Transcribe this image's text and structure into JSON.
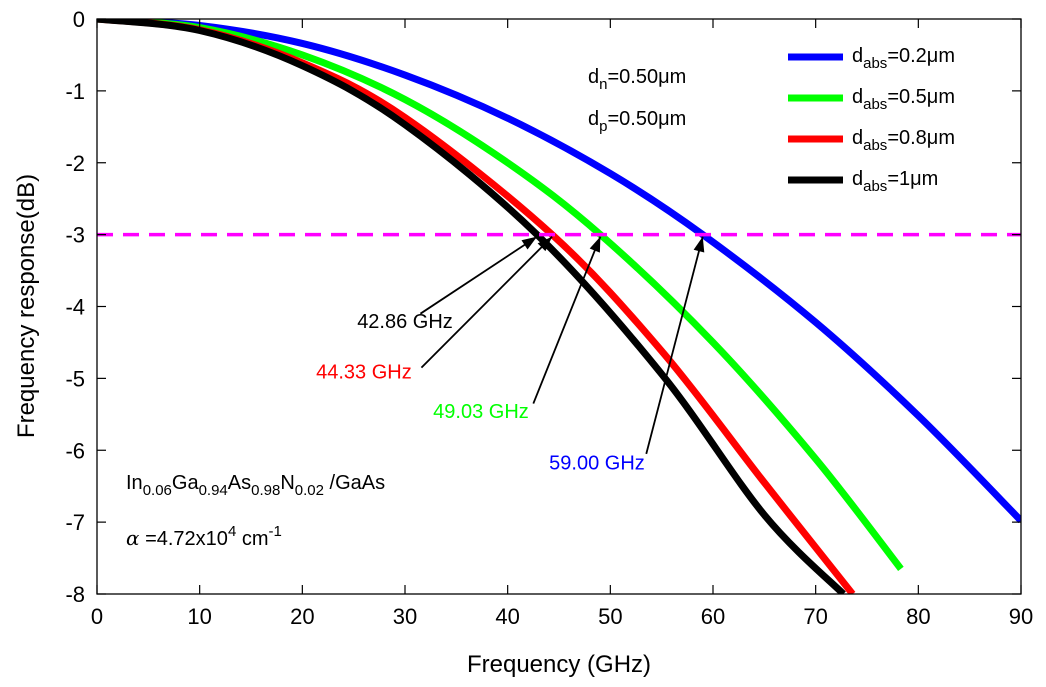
{
  "chart_data": {
    "type": "line",
    "xlabel": "Frequency (GHz)",
    "ylabel": "Frequency response(dB)",
    "xlim": [
      0,
      90
    ],
    "ylim": [
      -8,
      0
    ],
    "x_ticks": [
      "0",
      "10",
      "20",
      "30",
      "40",
      "50",
      "60",
      "70",
      "80",
      "90"
    ],
    "y_ticks": [
      "0",
      "-1",
      "-2",
      "-3",
      "-4",
      "-5",
      "-6",
      "-7",
      "-8"
    ],
    "grid": false,
    "legend_position": "top-right",
    "series": [
      {
        "name": "d_abs=0.2μm",
        "legend_base": "d",
        "legend_sub": "abs",
        "legend_rest": "=0.2μm",
        "color": "#0000ff",
        "f3db": 59.0,
        "x": [
          0,
          10,
          20,
          30,
          40,
          50,
          59,
          70,
          80,
          90
        ],
        "y": [
          0,
          -0.09,
          -0.34,
          -0.78,
          -1.38,
          -2.15,
          -3.0,
          -4.22,
          -5.52,
          -6.98
        ]
      },
      {
        "name": "d_abs=0.5μm",
        "legend_base": "d",
        "legend_sub": "abs",
        "legend_rest": "=0.5μm",
        "color": "#00ff00",
        "f3db": 49.03,
        "x": [
          0,
          10,
          20,
          30,
          40,
          49.03,
          60,
          70,
          78.3
        ],
        "y": [
          0,
          -0.12,
          -0.5,
          -1.12,
          -2.0,
          -3.0,
          -4.5,
          -6.12,
          -7.65
        ]
      },
      {
        "name": "d_abs=0.8μm",
        "legend_base": "d",
        "legend_sub": "abs",
        "legend_rest": "=0.8μm",
        "color": "#ff0000",
        "f3db": 44.33,
        "x": [
          0,
          10,
          20,
          30,
          44.33,
          55,
          65,
          73.6
        ],
        "y": [
          0,
          -0.15,
          -0.61,
          -1.37,
          -3.0,
          -4.62,
          -6.45,
          -8.0
        ]
      },
      {
        "name": "d_abs=1μm",
        "legend_base": "d",
        "legend_sub": "abs",
        "legend_rest": "=1μm",
        "color": "#000000",
        "f3db": 42.86,
        "x": [
          0,
          10,
          20,
          30,
          42.86,
          55,
          65,
          72.7
        ],
        "y": [
          0,
          -0.16,
          -0.65,
          -1.47,
          -3.0,
          -4.94,
          -6.9,
          -8.0
        ]
      }
    ],
    "reference_line": {
      "y": -3,
      "color": "#ff00ff",
      "style": "dashed"
    },
    "annotations": [
      {
        "text": "42.86 GHz",
        "color": "#000000",
        "text_x": 30,
        "text_y": -4.3,
        "arrow_to_x": 42.86,
        "arrow_from_x": 31.5,
        "arrow_from_y": -4.1
      },
      {
        "text": "44.33 GHz",
        "color": "#ff0000",
        "text_x": 26,
        "text_y": -5.0,
        "arrow_to_x": 44.33,
        "arrow_from_x": 31.6,
        "arrow_from_y": -4.85
      },
      {
        "text": "49.03 GHz",
        "color": "#00ff00",
        "text_x": 37.4,
        "text_y": -5.55,
        "arrow_to_x": 49.03,
        "arrow_from_x": 42.5,
        "arrow_from_y": -5.35
      },
      {
        "text": "59.00 GHz",
        "color": "#0000ff",
        "text_x": 48.7,
        "text_y": -6.27,
        "arrow_to_x": 59.0,
        "arrow_from_x": 53.5,
        "arrow_from_y": -6.05
      }
    ],
    "parameters": [
      {
        "base": "d",
        "sub": "n",
        "rest": "=0.50μm"
      },
      {
        "base": "d",
        "sub": "p",
        "rest": "=0.50μm"
      }
    ],
    "material": {
      "parts": [
        {
          "t": "In"
        },
        {
          "t": "0.06",
          "sub": true
        },
        {
          "t": "Ga"
        },
        {
          "t": "0.94",
          "sub": true
        },
        {
          "t": "As"
        },
        {
          "t": "0.98",
          "sub": true
        },
        {
          "t": "N"
        },
        {
          "t": "0.02",
          "sub": true
        },
        {
          "t": " /GaAs"
        }
      ],
      "alpha_symbol": "α",
      "alpha_value": " =4.72x10",
      "alpha_exp": "4",
      "alpha_unit": " cm",
      "alpha_unit_exp": "-1"
    }
  }
}
